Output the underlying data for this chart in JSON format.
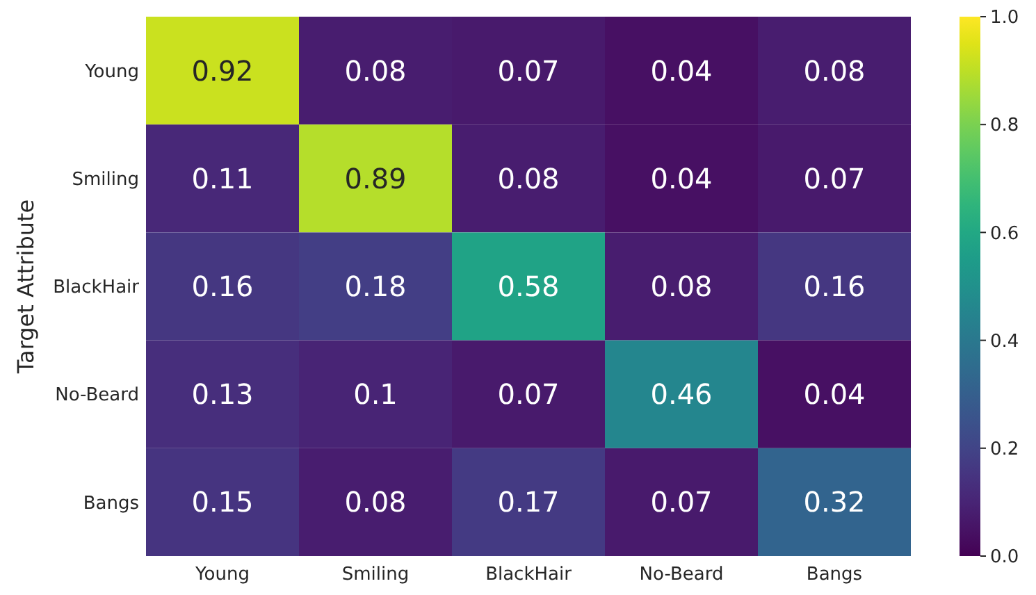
{
  "chart_data": {
    "type": "heatmap",
    "ylabel": "Target Attribute",
    "categories": [
      "Young",
      "Smiling",
      "BlackHair",
      "No-Beard",
      "Bangs"
    ],
    "y_categories": [
      "Young",
      "Smiling",
      "BlackHair",
      "No-Beard",
      "Bangs"
    ],
    "cells": [
      [
        0.92,
        0.08,
        0.07,
        0.04,
        0.08
      ],
      [
        0.11,
        0.89,
        0.08,
        0.04,
        0.07
      ],
      [
        0.16,
        0.18,
        0.58,
        0.08,
        0.16
      ],
      [
        0.13,
        0.1,
        0.07,
        0.46,
        0.04
      ],
      [
        0.15,
        0.08,
        0.17,
        0.07,
        0.32
      ]
    ],
    "data_labels": true,
    "clim": [
      0,
      1
    ],
    "cticks": [
      {
        "value": 0,
        "label": "0.0"
      },
      {
        "value": 0.2,
        "label": "0.2"
      },
      {
        "value": 0.4,
        "label": "0.4"
      },
      {
        "value": 0.6,
        "label": "0.6"
      },
      {
        "value": 0.8,
        "label": "0.8"
      },
      {
        "value": 1,
        "label": "1.0"
      }
    ]
  }
}
